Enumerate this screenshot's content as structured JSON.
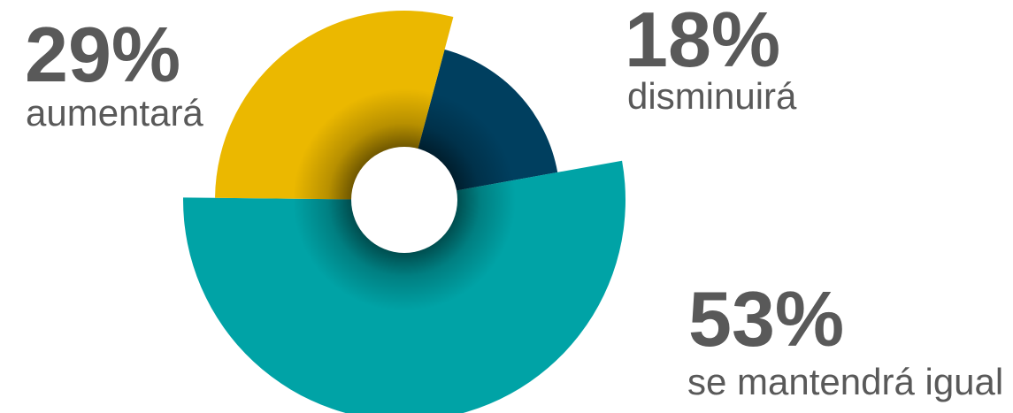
{
  "chart_data": {
    "type": "pie",
    "variant": "exploded-donut",
    "title": "",
    "slices": [
      {
        "label": "disminuirá",
        "value": 18,
        "percent_label": "18%",
        "color": "#003F5F"
      },
      {
        "label": "se mantendrá igual",
        "value": 53,
        "percent_label": "53%",
        "color": "#00A3A6"
      },
      {
        "label": "aumentará",
        "value": 29,
        "percent_label": "29%",
        "color": "#EBB800"
      }
    ]
  }
}
